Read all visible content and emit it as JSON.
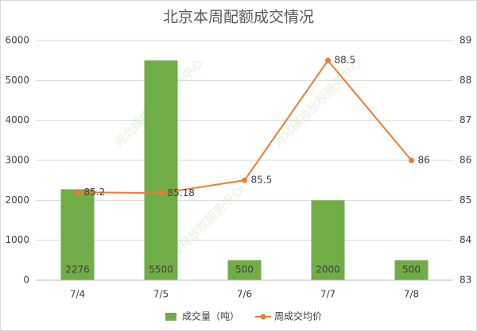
{
  "chart_data": {
    "type": "combo",
    "title": "北京本周配额成交情况",
    "categories": [
      "7/4",
      "7/5",
      "7/6",
      "7/7",
      "7/8"
    ],
    "series": [
      {
        "name": "成交量（吨）",
        "color": "#70ad47",
        "values": [
          2276,
          5500,
          500,
          2000,
          500
        ]
      },
      {
        "name": "周成交均价",
        "color": "#ed7d31",
        "axis": "y2",
        "values": [
          85.2,
          85.18,
          85.5,
          88.5,
          86
        ]
      }
    ],
    "ylim": [
      0,
      6000
    ],
    "yticks": [
      0,
      1000,
      2000,
      3000,
      4000,
      5000,
      6000
    ],
    "y2lim": [
      83,
      89
    ],
    "y2ticks": [
      83,
      84,
      85,
      86,
      87,
      88,
      89
    ],
    "grid": true,
    "legend": "bottom",
    "watermark": "河北碳排放权服务中心"
  }
}
